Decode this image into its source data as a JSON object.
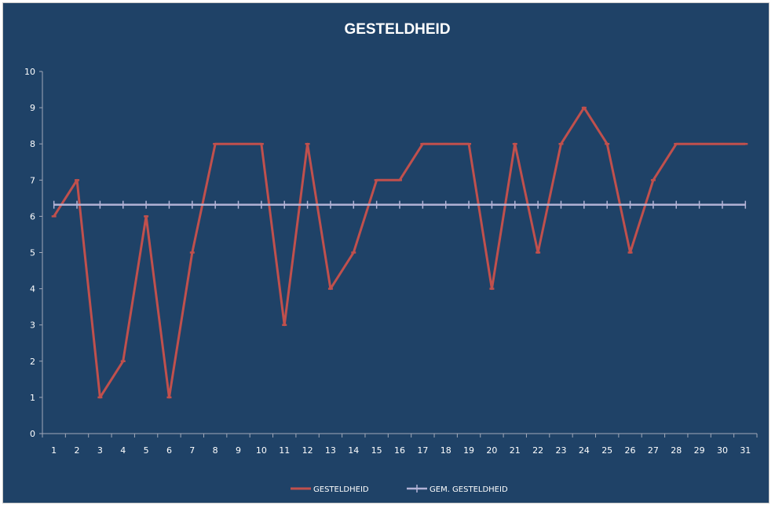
{
  "chart_data": {
    "type": "line",
    "title": "GESTELDHEID",
    "xlabel": "",
    "ylabel": "",
    "categories": [
      "1",
      "2",
      "3",
      "4",
      "5",
      "6",
      "7",
      "8",
      "9",
      "10",
      "11",
      "12",
      "13",
      "14",
      "15",
      "16",
      "17",
      "18",
      "19",
      "20",
      "21",
      "22",
      "23",
      "24",
      "25",
      "26",
      "27",
      "28",
      "29",
      "30",
      "31"
    ],
    "ylim": [
      0,
      10
    ],
    "yticks": [
      "0",
      "1",
      "2",
      "3",
      "4",
      "5",
      "6",
      "7",
      "8",
      "9",
      "10"
    ],
    "grid": false,
    "legend": "bottom",
    "series": [
      {
        "name": "GESTELDHEID",
        "color": "#c0504d",
        "values": [
          6,
          7,
          1,
          2,
          6,
          1,
          5,
          8,
          8,
          8,
          3,
          8,
          4,
          5,
          7,
          7,
          8,
          8,
          8,
          4,
          8,
          5,
          8,
          9,
          8,
          5,
          7,
          8,
          8,
          8,
          8
        ]
      },
      {
        "name": "GEM. GESTELDHEID",
        "color": "#b3b3d6",
        "values": [
          6.32,
          6.32,
          6.32,
          6.32,
          6.32,
          6.32,
          6.32,
          6.32,
          6.32,
          6.32,
          6.32,
          6.32,
          6.32,
          6.32,
          6.32,
          6.32,
          6.32,
          6.32,
          6.32,
          6.32,
          6.32,
          6.32,
          6.32,
          6.32,
          6.32,
          6.32,
          6.32,
          6.32,
          6.32,
          6.32,
          6.32
        ]
      }
    ]
  },
  "colors": {
    "background": "#1f4267",
    "axis": "#a0a8b8",
    "text": "#ffffff"
  }
}
